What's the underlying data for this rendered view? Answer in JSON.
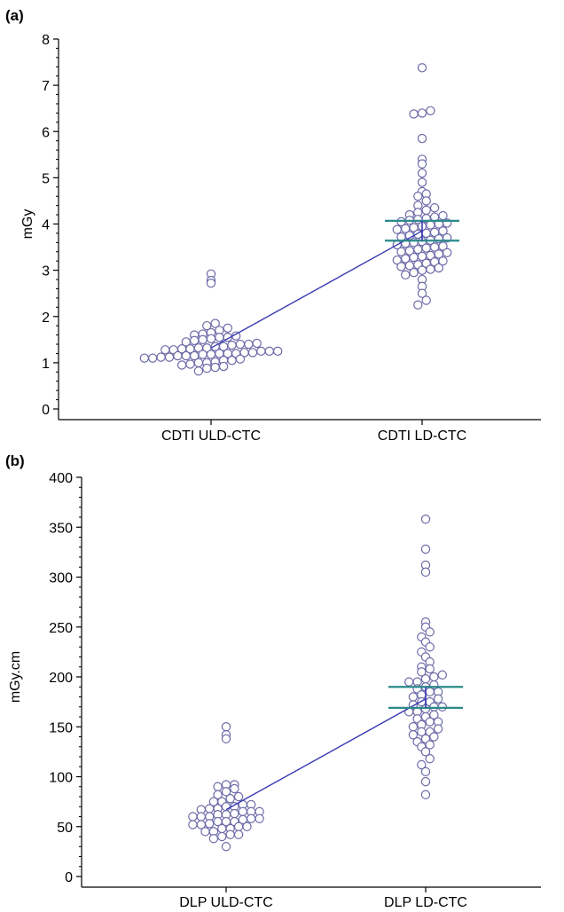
{
  "colors": {
    "marker_stroke": "#6a6aa8",
    "mean_line": "#3a3ab4",
    "ci_line": "#2a8a8a",
    "axis": "#000000"
  },
  "chart_data": [
    {
      "type": "scatter",
      "panel_label": "(a)",
      "ylabel": "mGy",
      "categories": [
        "CDTI ULD-CTC",
        "CDTI LD-CTC"
      ],
      "ylim": [
        0,
        8
      ],
      "yticks": [
        0,
        1,
        2,
        3,
        4,
        5,
        6,
        7,
        8
      ],
      "grid": false,
      "series": [
        {
          "values": [
            0.82,
            0.88,
            0.9,
            0.92,
            0.95,
            0.97,
            1.0,
            1.0,
            1.02,
            1.05,
            1.05,
            1.08,
            1.1,
            1.1,
            1.12,
            1.12,
            1.15,
            1.15,
            1.15,
            1.18,
            1.18,
            1.2,
            1.2,
            1.2,
            1.22,
            1.22,
            1.25,
            1.25,
            1.25,
            1.28,
            1.28,
            1.3,
            1.3,
            1.32,
            1.32,
            1.35,
            1.35,
            1.38,
            1.4,
            1.4,
            1.42,
            1.45,
            1.48,
            1.5,
            1.52,
            1.55,
            1.55,
            1.58,
            1.6,
            1.62,
            1.65,
            1.7,
            1.75,
            1.8,
            1.85,
            2.72,
            2.78,
            2.92
          ]
        },
        {
          "values": [
            2.25,
            2.35,
            2.5,
            2.65,
            2.8,
            2.9,
            2.95,
            3.0,
            3.02,
            3.05,
            3.08,
            3.1,
            3.12,
            3.15,
            3.18,
            3.2,
            3.22,
            3.25,
            3.28,
            3.3,
            3.32,
            3.35,
            3.38,
            3.4,
            3.42,
            3.45,
            3.48,
            3.5,
            3.52,
            3.55,
            3.58,
            3.6,
            3.62,
            3.65,
            3.68,
            3.7,
            3.72,
            3.75,
            3.78,
            3.8,
            3.82,
            3.85,
            3.88,
            3.9,
            3.92,
            3.95,
            3.98,
            4.0,
            4.02,
            4.05,
            4.08,
            4.1,
            4.12,
            4.15,
            4.18,
            4.2,
            4.25,
            4.3,
            4.35,
            4.4,
            4.5,
            4.6,
            4.65,
            4.7,
            4.9,
            5.1,
            5.3,
            5.4,
            5.85,
            6.38,
            6.4,
            6.45,
            7.38
          ]
        }
      ],
      "means": [
        1.32,
        3.85
      ],
      "ci": [
        null,
        [
          3.64,
          4.07
        ]
      ]
    },
    {
      "type": "scatter",
      "panel_label": "(b)",
      "ylabel": "mGy.cm",
      "categories": [
        "DLP ULD-CTC",
        "DLP LD-CTC"
      ],
      "ylim": [
        0,
        400
      ],
      "yticks": [
        0,
        50,
        100,
        150,
        200,
        250,
        300,
        350,
        400
      ],
      "grid": false,
      "series": [
        {
          "values": [
            30,
            38,
            40,
            42,
            42,
            45,
            45,
            48,
            48,
            50,
            50,
            52,
            52,
            53,
            55,
            55,
            55,
            57,
            58,
            58,
            60,
            60,
            60,
            62,
            62,
            63,
            65,
            65,
            65,
            67,
            68,
            68,
            70,
            70,
            72,
            72,
            75,
            75,
            78,
            80,
            82,
            85,
            88,
            90,
            92,
            92,
            138,
            142,
            150
          ]
        },
        {
          "values": [
            82,
            95,
            105,
            112,
            118,
            125,
            130,
            132,
            135,
            138,
            140,
            142,
            145,
            145,
            148,
            150,
            152,
            155,
            155,
            158,
            160,
            162,
            165,
            165,
            168,
            170,
            170,
            172,
            175,
            175,
            178,
            180,
            182,
            185,
            185,
            188,
            190,
            192,
            195,
            195,
            198,
            200,
            202,
            205,
            208,
            210,
            215,
            220,
            225,
            230,
            235,
            240,
            245,
            250,
            255,
            305,
            312,
            328,
            358
          ]
        }
      ],
      "means": [
        67,
        178
      ],
      "ci": [
        null,
        [
          169,
          190
        ]
      ]
    }
  ]
}
